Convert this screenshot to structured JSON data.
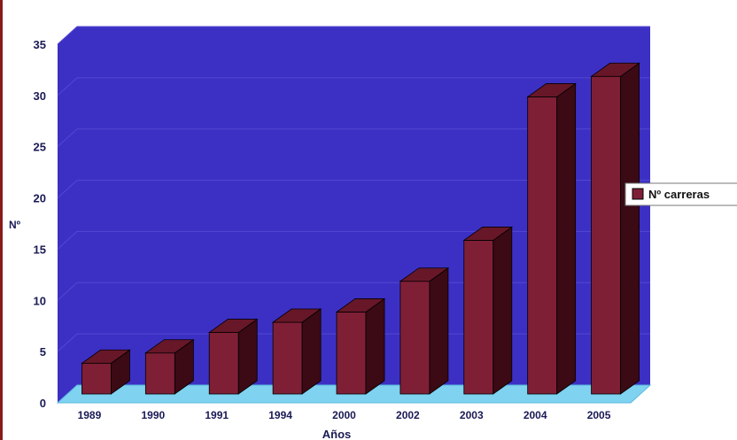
{
  "chart_data": {
    "type": "bar",
    "title": "",
    "xlabel": "Años",
    "ylabel": "Nº",
    "categories": [
      "1989",
      "1990",
      "1991",
      "1994",
      "2000",
      "2002",
      "2003",
      "2004",
      "2005"
    ],
    "series": [
      {
        "name": "Nº carreras",
        "values": [
          3,
          4,
          6,
          7,
          8,
          11,
          15,
          29,
          31
        ]
      }
    ],
    "ylim": [
      0,
      35
    ],
    "yticks": [
      0,
      5,
      10,
      15,
      20,
      25,
      30,
      35
    ],
    "grid": true,
    "legend": "right"
  },
  "colors": {
    "wall": "#3c30c4",
    "floor": "#7fd2f0",
    "bar_front": "#7f1f36",
    "bar_top": "#681728",
    "bar_side": "#3b0a14",
    "text": "#1a1a55"
  }
}
